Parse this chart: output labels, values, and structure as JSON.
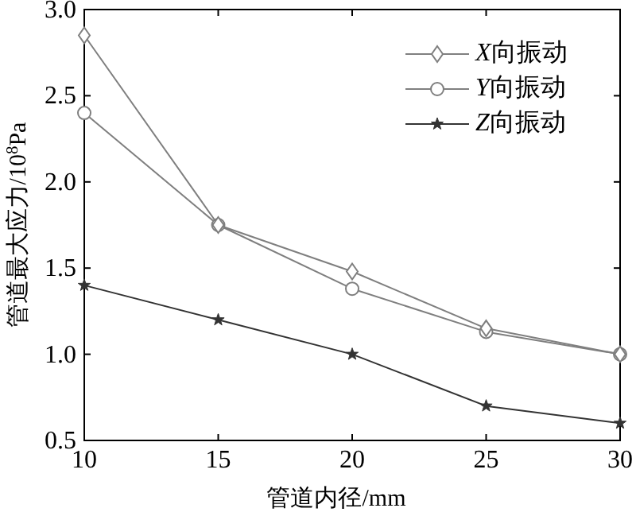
{
  "chart_data": {
    "type": "line",
    "xlabel": "管道内径/mm",
    "ylabel": "管道最大应力/10$^{8}$Pa",
    "x": [
      10,
      15,
      20,
      25,
      30
    ],
    "series": [
      {
        "name": "X向振动",
        "color": "#7f7f7f",
        "marker": "diamond",
        "values": [
          2.85,
          1.75,
          1.48,
          1.15,
          1.0
        ]
      },
      {
        "name": "Y向振动",
        "color": "#7f7f7f",
        "marker": "circle",
        "values": [
          2.4,
          1.75,
          1.38,
          1.13,
          1.0
        ]
      },
      {
        "name": "Z向振动",
        "color": "#333333",
        "marker": "star",
        "values": [
          1.4,
          1.2,
          1.0,
          0.7,
          0.6
        ]
      }
    ],
    "xlim": [
      10,
      30
    ],
    "ylim": [
      0.5,
      3.0
    ],
    "xticks": [
      10,
      15,
      20,
      25,
      30
    ],
    "yticks": [
      {
        "value": 0.5,
        "label": "0.5"
      },
      {
        "value": 1.0,
        "label": "1.0"
      },
      {
        "value": 1.5,
        "label": "1.5"
      },
      {
        "value": 2.0,
        "label": "2.0"
      },
      {
        "value": 2.5,
        "label": "2.5"
      },
      {
        "value": 3.0,
        "label": "3.0"
      }
    ],
    "legend": "top right",
    "grid": false,
    "line_style": "solid"
  }
}
